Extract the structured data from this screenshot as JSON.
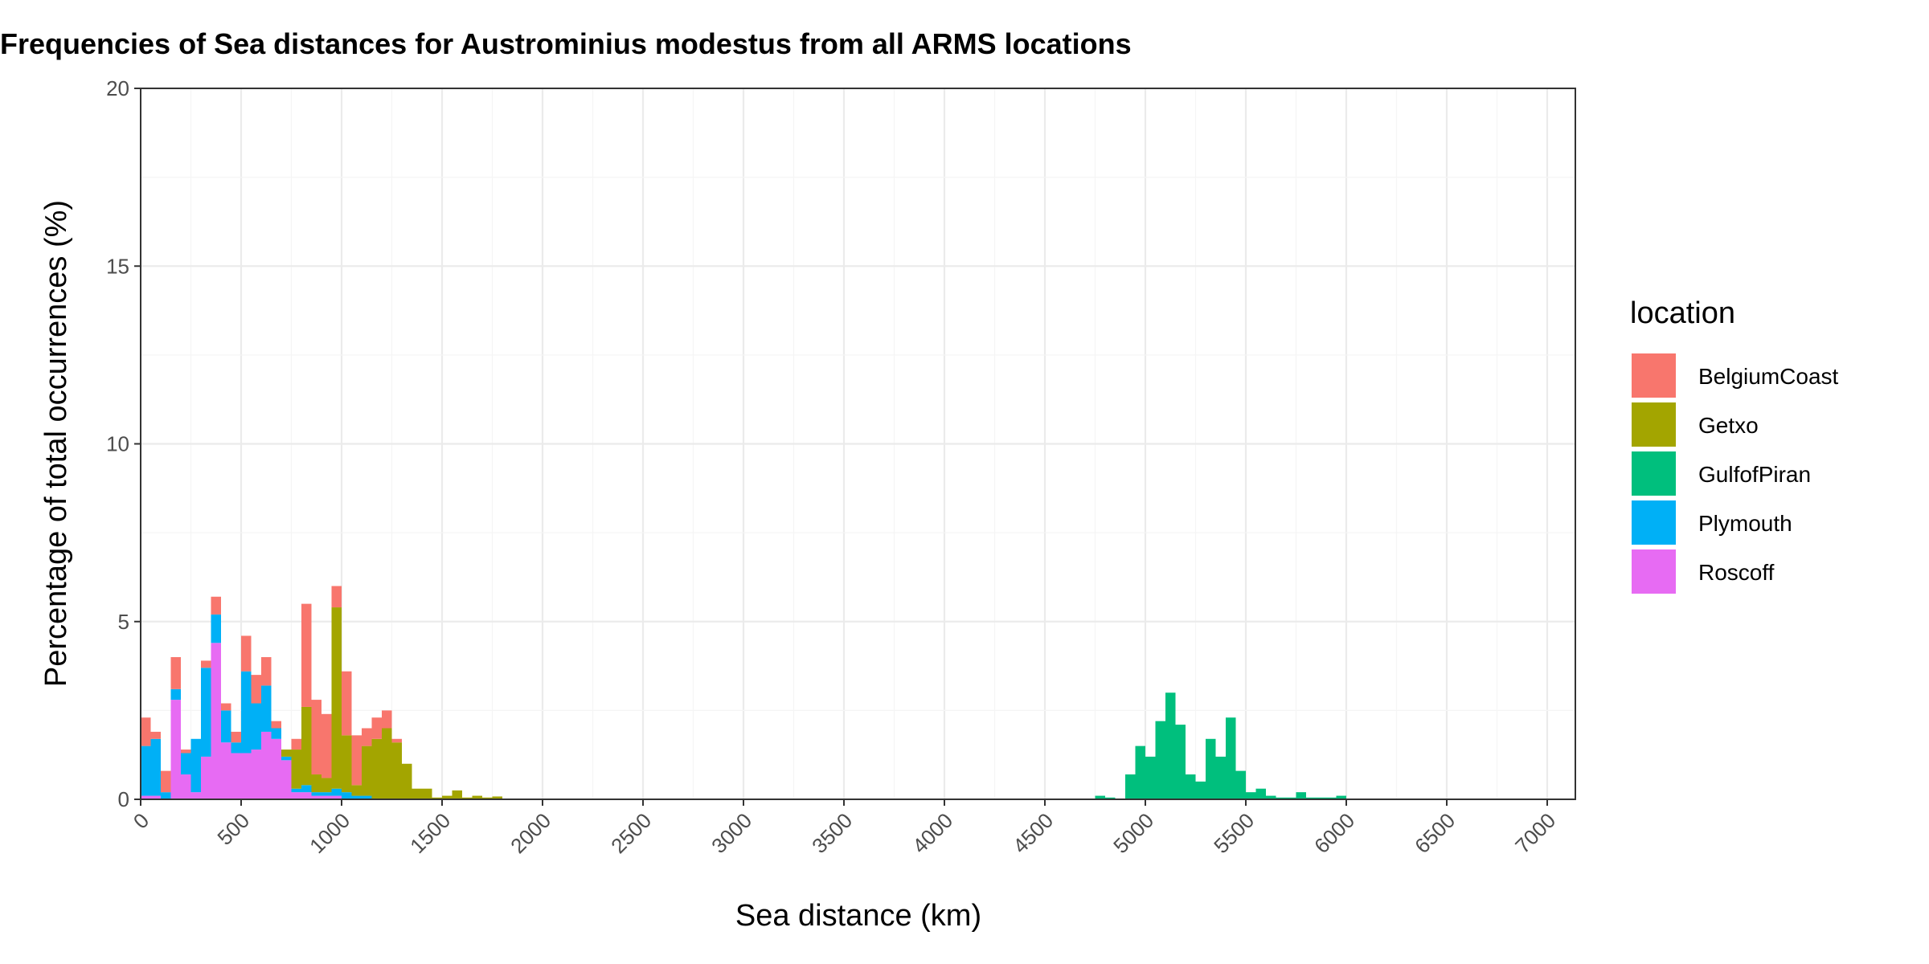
{
  "chart_data": {
    "type": "bar",
    "stacked": true,
    "title": "Frequencies of Sea distances for Austrominius modestus from all ARMS locations",
    "xlabel": "Sea distance (km)",
    "ylabel": "Percentage of total occurrences (%)",
    "xlim": [
      0,
      7000
    ],
    "ylim": [
      0,
      20
    ],
    "x_ticks": [
      0,
      500,
      1000,
      1500,
      2000,
      2500,
      3000,
      3500,
      4000,
      4500,
      5000,
      5500,
      6000,
      6500,
      7000
    ],
    "y_ticks": [
      0,
      5,
      10,
      15,
      20
    ],
    "bin_width_km": 50,
    "grid": true,
    "legend": {
      "title": "location",
      "position": "right"
    },
    "series": [
      {
        "name": "BelgiumCoast",
        "color": "#F8766D",
        "bins": [
          [
            0,
            0.8
          ],
          [
            50,
            0.2
          ],
          [
            100,
            0.6
          ],
          [
            150,
            0.9
          ],
          [
            200,
            0.1
          ],
          [
            250,
            0
          ],
          [
            300,
            0.2
          ],
          [
            350,
            0.5
          ],
          [
            400,
            0.2
          ],
          [
            450,
            0.3
          ],
          [
            500,
            1.0
          ],
          [
            550,
            0.8
          ],
          [
            600,
            0.8
          ],
          [
            650,
            0.2
          ],
          [
            700,
            0
          ],
          [
            750,
            0.3
          ],
          [
            800,
            2.9
          ],
          [
            850,
            2.1
          ],
          [
            900,
            1.8
          ],
          [
            950,
            0.6
          ],
          [
            1000,
            1.8
          ],
          [
            1050,
            1.4
          ],
          [
            1100,
            0.5
          ],
          [
            1150,
            0.6
          ],
          [
            1200,
            0.5
          ],
          [
            1250,
            0.1
          ]
        ]
      },
      {
        "name": "Getxo",
        "color": "#A3A500",
        "bins": [
          [
            700,
            0.2
          ],
          [
            750,
            1.1
          ],
          [
            800,
            2.2
          ],
          [
            850,
            0.5
          ],
          [
            900,
            0.4
          ],
          [
            950,
            5.1
          ],
          [
            1000,
            1.6
          ],
          [
            1050,
            0.3
          ],
          [
            1100,
            1.4
          ],
          [
            1150,
            1.7
          ],
          [
            1200,
            2.0
          ],
          [
            1250,
            1.6
          ],
          [
            1300,
            1.0
          ],
          [
            1350,
            0.3
          ],
          [
            1400,
            0.3
          ],
          [
            1450,
            0.05
          ],
          [
            1500,
            0.1
          ],
          [
            1550,
            0.25
          ],
          [
            1600,
            0.05
          ],
          [
            1650,
            0.1
          ],
          [
            1700,
            0.05
          ],
          [
            1750,
            0.08
          ]
        ]
      },
      {
        "name": "GulfofPiran",
        "color": "#00BF7D",
        "bins": [
          [
            4750,
            0.1
          ],
          [
            4800,
            0.05
          ],
          [
            4900,
            0.7
          ],
          [
            4950,
            1.5
          ],
          [
            5000,
            1.2
          ],
          [
            5050,
            2.2
          ],
          [
            5100,
            3.0
          ],
          [
            5150,
            2.1
          ],
          [
            5200,
            0.7
          ],
          [
            5250,
            0.5
          ],
          [
            5300,
            1.7
          ],
          [
            5350,
            1.2
          ],
          [
            5400,
            2.3
          ],
          [
            5450,
            0.8
          ],
          [
            5500,
            0.2
          ],
          [
            5550,
            0.3
          ],
          [
            5600,
            0.1
          ],
          [
            5650,
            0.05
          ],
          [
            5700,
            0.05
          ],
          [
            5750,
            0.2
          ],
          [
            5800,
            0.05
          ],
          [
            5850,
            0.05
          ],
          [
            5900,
            0.05
          ],
          [
            5950,
            0.1
          ]
        ]
      },
      {
        "name": "Plymouth",
        "color": "#00B0F6",
        "bins": [
          [
            0,
            1.4
          ],
          [
            50,
            1.6
          ],
          [
            100,
            0.2
          ],
          [
            150,
            0.3
          ],
          [
            200,
            0.6
          ],
          [
            250,
            1.5
          ],
          [
            300,
            2.5
          ],
          [
            350,
            0.8
          ],
          [
            400,
            0.9
          ],
          [
            450,
            0.3
          ],
          [
            500,
            2.3
          ],
          [
            550,
            1.3
          ],
          [
            600,
            1.3
          ],
          [
            650,
            0.3
          ],
          [
            700,
            0.1
          ],
          [
            750,
            0.1
          ],
          [
            800,
            0.2
          ],
          [
            850,
            0.1
          ],
          [
            900,
            0.1
          ],
          [
            950,
            0.2
          ],
          [
            1000,
            0.2
          ],
          [
            1050,
            0.1
          ],
          [
            1100,
            0.1
          ]
        ]
      },
      {
        "name": "Roscoff",
        "color": "#E76BF3",
        "bins": [
          [
            0,
            0.1
          ],
          [
            50,
            0.1
          ],
          [
            150,
            2.8
          ],
          [
            200,
            0.7
          ],
          [
            250,
            0.2
          ],
          [
            300,
            1.2
          ],
          [
            350,
            4.4
          ],
          [
            400,
            1.6
          ],
          [
            450,
            1.3
          ],
          [
            500,
            1.3
          ],
          [
            550,
            1.4
          ],
          [
            600,
            1.9
          ],
          [
            650,
            1.7
          ],
          [
            700,
            1.1
          ],
          [
            750,
            0.2
          ],
          [
            800,
            0.2
          ],
          [
            850,
            0.1
          ],
          [
            900,
            0.1
          ],
          [
            950,
            0.1
          ]
        ]
      }
    ]
  }
}
